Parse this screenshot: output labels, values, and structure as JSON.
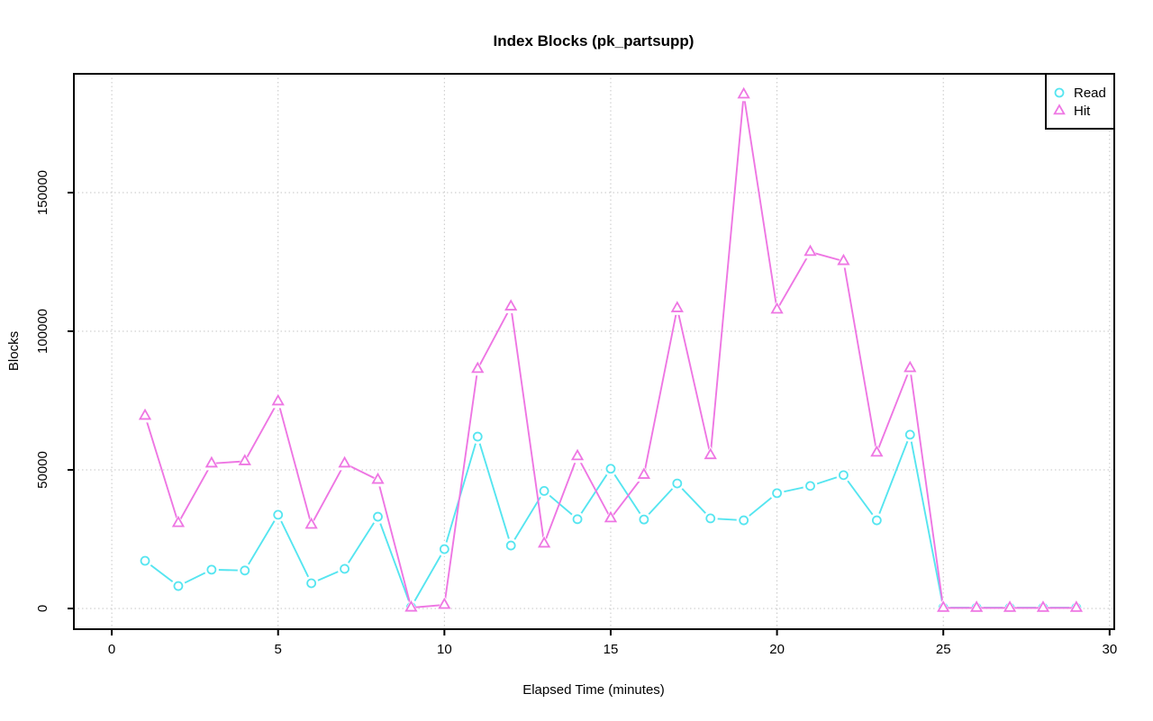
{
  "page": {
    "background": "#ffffff",
    "grid_color": "#c6c6c6",
    "axis_color": "#000000"
  },
  "chart_data": {
    "type": "line",
    "title": "Index Blocks (pk_partsupp)",
    "xlabel": "Elapsed Time (minutes)",
    "ylabel": "Blocks",
    "x_ticks": [
      0,
      5,
      10,
      15,
      20,
      25,
      30
    ],
    "x_tick_labels": [
      "0",
      "5",
      "10",
      "15",
      "20",
      "25",
      "30"
    ],
    "y_ticks": [
      0,
      50000,
      100000,
      150000
    ],
    "y_tick_labels": [
      "0",
      "50000",
      "100000",
      "150000"
    ],
    "xlim": [
      -1.14,
      30.14
    ],
    "ylim": [
      -7468,
      192857
    ],
    "grid": "dotted",
    "legend_position": "top-right",
    "x": [
      1,
      2,
      3,
      4,
      5,
      6,
      7,
      8,
      9,
      10,
      11,
      12,
      13,
      14,
      15,
      16,
      17,
      18,
      19,
      20,
      21,
      22,
      23,
      24,
      25,
      26,
      27,
      28,
      29
    ],
    "series": [
      {
        "name": "Read",
        "marker": "circle",
        "color": "#55e5f0",
        "values": [
          17200,
          8100,
          14000,
          13700,
          33800,
          9100,
          14300,
          33100,
          500,
          21400,
          62000,
          22700,
          42400,
          32200,
          50400,
          32100,
          45100,
          32500,
          31800,
          41600,
          44200,
          48100,
          31800,
          62700,
          300,
          300,
          300,
          300,
          300
        ]
      },
      {
        "name": "Hit",
        "marker": "triangle",
        "color": "#ee76e3",
        "values": [
          69500,
          30800,
          52300,
          53100,
          74700,
          30200,
          52300,
          46400,
          300,
          1300,
          86400,
          108900,
          23400,
          54900,
          32500,
          48200,
          108300,
          55300,
          185400,
          107800,
          128600,
          125300,
          56200,
          86700,
          200,
          200,
          200,
          200,
          200
        ]
      }
    ]
  }
}
